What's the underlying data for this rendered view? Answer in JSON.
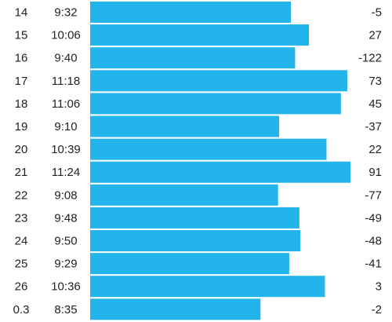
{
  "splits": {
    "rows": [
      {
        "mile": 14,
        "pace": "9:32",
        "elevation": -5
      },
      {
        "mile": 15,
        "pace": "10:06",
        "elevation": 27
      },
      {
        "mile": 16,
        "pace": "9:40",
        "elevation": -122
      },
      {
        "mile": 17,
        "pace": "11:18",
        "elevation": 73
      },
      {
        "mile": 18,
        "pace": "11:06",
        "elevation": 45
      },
      {
        "mile": 19,
        "pace": "9:10",
        "elevation": -37
      },
      {
        "mile": 20,
        "pace": "10:39",
        "elevation": 22
      },
      {
        "mile": 21,
        "pace": "11:24",
        "elevation": 91
      },
      {
        "mile": 22,
        "pace": "9:08",
        "elevation": -77
      },
      {
        "mile": 23,
        "pace": "9:48",
        "elevation": -49
      },
      {
        "mile": 24,
        "pace": "9:50",
        "elevation": -48
      },
      {
        "mile": 25,
        "pace": "9:29",
        "elevation": -41
      },
      {
        "mile": 26,
        "pace": "10:36",
        "elevation": 3
      },
      {
        "mile": 0.3,
        "pace": "8:35",
        "elevation": -2
      }
    ],
    "bar_color": "#22b4ea"
  }
}
